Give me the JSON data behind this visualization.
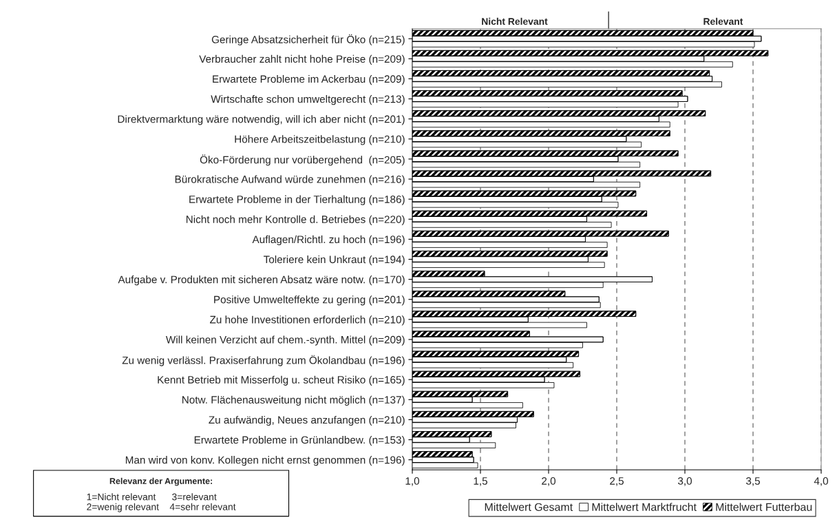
{
  "chart_data": {
    "type": "bar",
    "orientation": "horizontal",
    "categories": [
      "Geringe Absatzsicherheit für Öko (n=215)",
      "Verbraucher zahlt nicht hohe Preise (n=209)",
      "Erwartete Probleme im Ackerbau (n=209)",
      "Wirtschafte schon umweltgerecht (n=213)",
      "Direktvermarktung wäre notwendig, will ich aber nicht (n=201)",
      "Höhere Arbeitszeitbelastung (n=210)",
      "Öko-Förderung nur vorübergehend  (n=205)",
      "Bürokratische Aufwand würde zunehmen (n=216)",
      "Erwartete Probleme in der Tierhaltung (n=186)",
      "Nicht noch mehr Kontrolle d. Betriebes (n=220)",
      "Auflagen/Richtl. zu hoch (n=196)",
      "Toleriere kein Unkraut (n=194)",
      "Aufgabe v. Produkten mit sicheren Absatz wäre notw. (n=170)",
      "Positive Umwelteffekte zu gering (n=201)",
      "Zu hohe Investitionen erforderlich (n=210)",
      "Will keinen Verzicht auf chem.-synth. Mittel (n=209)",
      "Zu wenig verlässl. Praxiserfahrung zum Ökolandbau (n=196)",
      "Kennt Betrieb mit Misserfolg u. scheut Risiko (n=165)",
      "Notw. Flächenausweitung nicht möglich (n=137)",
      "Zu aufwändig, Neues anzufangen (n=210)",
      "Erwartete Probleme in Grünlandbew. (n=153)",
      "Man wird von konv. Kollegen nicht ernst genommen (n=196)"
    ],
    "series": [
      {
        "name": "Mittelwert Gesamt",
        "color": "#ffffff",
        "values": [
          3.51,
          3.35,
          3.27,
          2.95,
          2.89,
          2.68,
          2.67,
          2.67,
          2.51,
          2.46,
          2.43,
          2.41,
          2.4,
          2.38,
          2.28,
          2.25,
          2.18,
          2.04,
          1.81,
          1.76,
          1.61,
          1.48
        ]
      },
      {
        "name": "Mittelwert Marktfrucht",
        "color": "#ffffff",
        "values": [
          3.56,
          3.14,
          3.2,
          3.02,
          2.81,
          2.57,
          2.51,
          2.33,
          2.39,
          2.28,
          2.27,
          2.29,
          2.76,
          2.37,
          1.85,
          2.4,
          2.13,
          1.97,
          1.44,
          1.77,
          1.42,
          1.45
        ]
      },
      {
        "name": "Mittelwert Futterbau",
        "color": "#000000",
        "values": [
          3.5,
          3.61,
          3.18,
          2.98,
          3.15,
          2.89,
          2.95,
          3.19,
          2.64,
          2.72,
          2.88,
          2.43,
          1.53,
          2.12,
          2.64,
          1.86,
          2.22,
          2.23,
          1.7,
          1.89,
          1.58,
          1.44
        ]
      }
    ],
    "xlim": [
      1.0,
      4.0
    ],
    "xticks": [
      {
        "value": 1.0,
        "label": "1,0"
      },
      {
        "value": 1.5,
        "label": "1,5"
      },
      {
        "value": 2.0,
        "label": "2,0"
      },
      {
        "value": 2.5,
        "label": "2,5"
      },
      {
        "value": 3.0,
        "label": "3,0"
      },
      {
        "value": 3.5,
        "label": "3,5"
      },
      {
        "value": 4.0,
        "label": "4,0"
      }
    ],
    "grid": "x",
    "legend": "bottom right",
    "annotations": [
      "Nicht Relevant",
      "Relevant",
      "Relevanz der Argumente:",
      "1=Nicht relevant      3=relevant\n2=wenig relevant    4=sehr relevant"
    ]
  }
}
